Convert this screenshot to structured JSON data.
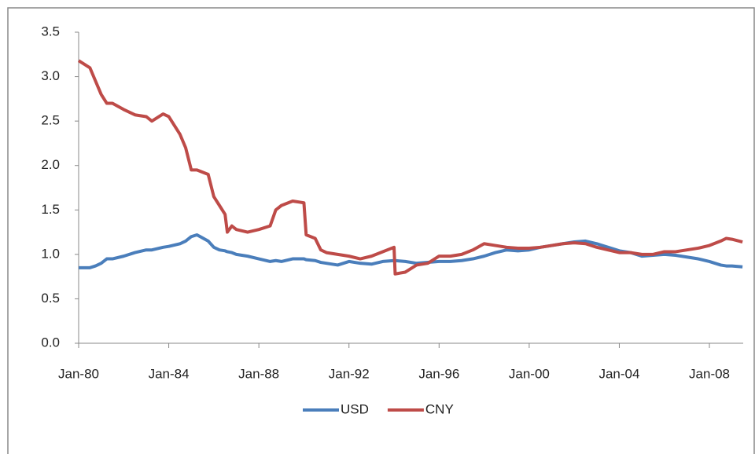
{
  "chart_data": {
    "type": "line",
    "x": [
      1980.0,
      1980.5,
      1980.75,
      1981.0,
      1981.25,
      1981.5,
      1982.0,
      1982.5,
      1983.0,
      1983.25,
      1983.75,
      1984.0,
      1984.5,
      1984.75,
      1985.0,
      1985.25,
      1985.75,
      1986.0,
      1986.25,
      1986.5,
      1986.6,
      1986.8,
      1987.0,
      1987.5,
      1988.0,
      1988.5,
      1988.75,
      1989.0,
      1989.5,
      1990.0,
      1990.1,
      1990.5,
      1990.75,
      1991.0,
      1991.5,
      1992.0,
      1992.5,
      1993.0,
      1993.5,
      1994.0,
      1994.05,
      1994.5,
      1995.0,
      1995.5,
      1996.0,
      1996.5,
      1997.0,
      1997.5,
      1998.0,
      1998.5,
      1999.0,
      1999.5,
      2000.0,
      2000.5,
      2001.0,
      2001.5,
      2002.0,
      2002.5,
      2003.0,
      2003.5,
      2004.0,
      2004.5,
      2005.0,
      2005.5,
      2006.0,
      2006.5,
      2007.0,
      2007.5,
      2008.0,
      2008.5,
      2008.75,
      2009.0,
      2009.47
    ],
    "series": [
      {
        "name": "USD",
        "color": "#4a7ebb",
        "values": [
          0.85,
          0.85,
          0.87,
          0.9,
          0.95,
          0.95,
          0.98,
          1.02,
          1.05,
          1.05,
          1.08,
          1.09,
          1.12,
          1.15,
          1.2,
          1.22,
          1.15,
          1.08,
          1.05,
          1.04,
          1.03,
          1.02,
          1.0,
          0.98,
          0.95,
          0.92,
          0.93,
          0.92,
          0.95,
          0.95,
          0.94,
          0.93,
          0.91,
          0.9,
          0.88,
          0.92,
          0.9,
          0.89,
          0.92,
          0.93,
          0.93,
          0.92,
          0.9,
          0.91,
          0.92,
          0.92,
          0.93,
          0.95,
          0.98,
          1.02,
          1.05,
          1.04,
          1.05,
          1.08,
          1.1,
          1.12,
          1.14,
          1.15,
          1.12,
          1.08,
          1.04,
          1.02,
          0.98,
          0.99,
          1.0,
          0.99,
          0.97,
          0.95,
          0.92,
          0.88,
          0.87,
          0.87,
          0.86
        ]
      },
      {
        "name": "CNY",
        "color": "#be4b48",
        "values": [
          3.18,
          3.1,
          2.95,
          2.8,
          2.7,
          2.7,
          2.63,
          2.57,
          2.55,
          2.5,
          2.58,
          2.55,
          2.35,
          2.2,
          1.95,
          1.95,
          1.9,
          1.65,
          1.55,
          1.45,
          1.25,
          1.32,
          1.28,
          1.25,
          1.28,
          1.32,
          1.5,
          1.55,
          1.6,
          1.58,
          1.22,
          1.18,
          1.05,
          1.02,
          1.0,
          0.98,
          0.95,
          0.98,
          1.03,
          1.08,
          0.78,
          0.8,
          0.88,
          0.9,
          0.98,
          0.98,
          1.0,
          1.05,
          1.12,
          1.1,
          1.08,
          1.07,
          1.07,
          1.08,
          1.1,
          1.12,
          1.13,
          1.12,
          1.08,
          1.05,
          1.02,
          1.02,
          1.0,
          1.0,
          1.03,
          1.03,
          1.05,
          1.07,
          1.1,
          1.15,
          1.18,
          1.17,
          1.14
        ]
      }
    ],
    "xlim": [
      1980,
      2009.5
    ],
    "xticks": [
      {
        "value": 1980,
        "label": "Jan-80"
      },
      {
        "value": 1984,
        "label": "Jan-84"
      },
      {
        "value": 1988,
        "label": "Jan-88"
      },
      {
        "value": 1992,
        "label": "Jan-92"
      },
      {
        "value": 1996,
        "label": "Jan-96"
      },
      {
        "value": 2000,
        "label": "Jan-00"
      },
      {
        "value": 2004,
        "label": "Jan-04"
      },
      {
        "value": 2008,
        "label": "Jan-08"
      }
    ],
    "ylim": [
      0,
      3.5
    ],
    "yticks": [
      {
        "value": 0,
        "label": "0.0"
      },
      0.5,
      {
        "value": 1,
        "label": "1.0"
      },
      1.5,
      {
        "value": 2,
        "label": "2.0"
      },
      2.5,
      {
        "value": 3,
        "label": "3.0"
      },
      3.5
    ],
    "legend": "bottom"
  }
}
